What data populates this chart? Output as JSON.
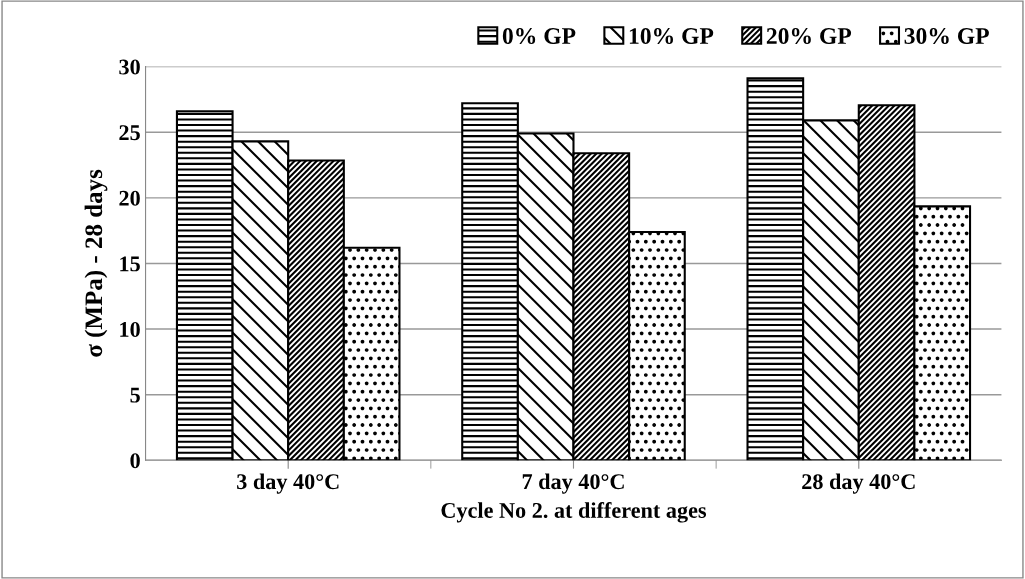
{
  "chart_data": {
    "type": "bar",
    "xlabel": "Cycle No 2. at different ages",
    "ylabel": "σ (MPa) - 28 days",
    "categories": [
      "3 day 40°C",
      "7 day 40°C",
      "28 day 40°C"
    ],
    "series": [
      {
        "name": "0% GP",
        "color": "#000000",
        "values": [
          26.6,
          27.2,
          29.1
        ]
      },
      {
        "name": "10% GP",
        "color": "#000000",
        "values": [
          24.3,
          24.9,
          25.9
        ]
      },
      {
        "name": "20% GP",
        "color": "#000000",
        "values": [
          22.85,
          23.4,
          27.05
        ]
      },
      {
        "name": "30% GP",
        "color": "#000000",
        "values": [
          16.2,
          17.4,
          19.35
        ]
      }
    ],
    "ylim": [
      0,
      30
    ],
    "yticks": [
      0,
      5,
      10,
      15,
      20,
      25,
      30
    ],
    "grid": "y",
    "legend": "top"
  }
}
